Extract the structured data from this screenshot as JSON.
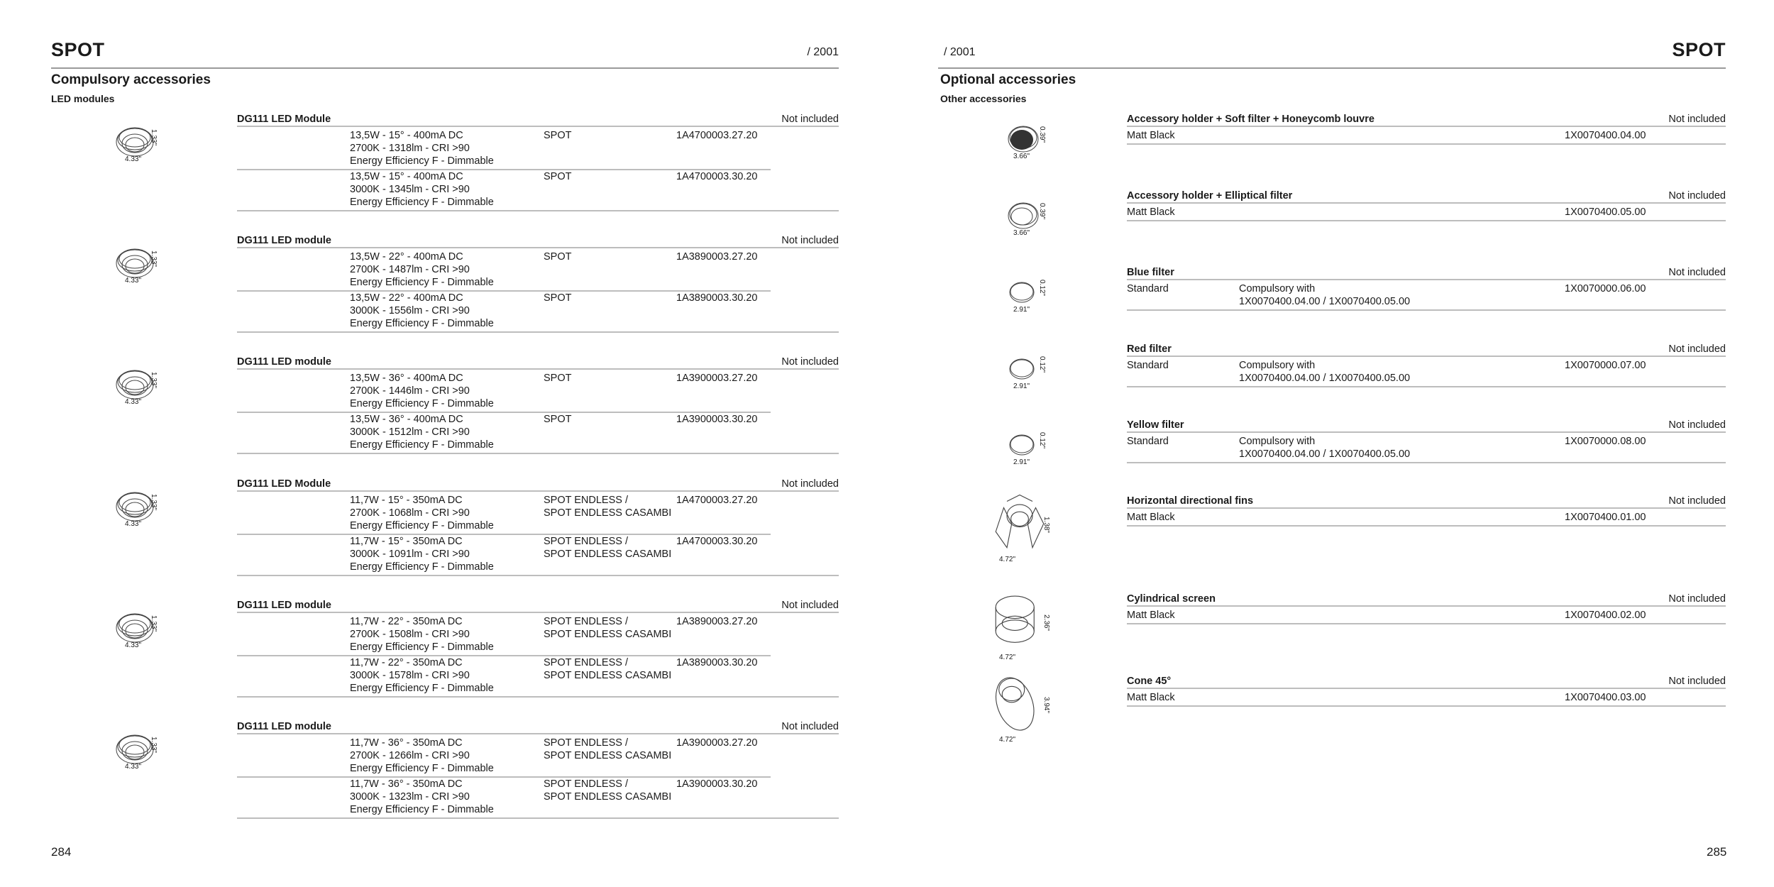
{
  "left_page": {
    "title": "SPOT",
    "series": "/ 2001",
    "section": "Compulsory accessories",
    "subsection": "LED modules",
    "page_number": "284",
    "groups": [
      {
        "title": "DG111 LED Module",
        "status": "Not included",
        "dims": [
          "4.33\"",
          "1.33\""
        ],
        "rows": [
          {
            "desc": [
              "13,5W - 15° - 400mA DC",
              "2700K - 1318lm - CRI >90",
              "Energy Efficiency F - Dimmable"
            ],
            "product": [
              "SPOT"
            ],
            "code": "1A4700003.27.20"
          },
          {
            "desc": [
              "13,5W - 15° - 400mA DC",
              "3000K - 1345lm - CRI >90",
              "Energy Efficiency F - Dimmable"
            ],
            "product": [
              "SPOT"
            ],
            "code": "1A4700003.30.20"
          }
        ]
      },
      {
        "title": "DG111 LED module",
        "status": "Not included",
        "dims": [
          "4.33\"",
          "1.33\""
        ],
        "rows": [
          {
            "desc": [
              "13,5W - 22° - 400mA DC",
              "2700K - 1487lm - CRI >90",
              "Energy Efficiency F - Dimmable"
            ],
            "product": [
              "SPOT"
            ],
            "code": "1A3890003.27.20"
          },
          {
            "desc": [
              "13,5W - 22° - 400mA DC",
              "3000K - 1556lm - CRI >90",
              "Energy Efficiency F - Dimmable"
            ],
            "product": [
              "SPOT"
            ],
            "code": "1A3890003.30.20"
          }
        ]
      },
      {
        "title": "DG111 LED module",
        "status": "Not included",
        "dims": [
          "4.33\"",
          "1.33\""
        ],
        "rows": [
          {
            "desc": [
              "13,5W - 36° - 400mA DC",
              "2700K - 1446lm - CRI >90",
              "Energy Efficiency F - Dimmable"
            ],
            "product": [
              "SPOT"
            ],
            "code": "1A3900003.27.20"
          },
          {
            "desc": [
              "13,5W - 36° - 400mA DC",
              "3000K - 1512lm - CRI >90",
              "Energy Efficiency F - Dimmable"
            ],
            "product": [
              "SPOT"
            ],
            "code": "1A3900003.30.20"
          }
        ]
      },
      {
        "title": "DG111 LED Module",
        "status": "Not included",
        "dims": [
          "4.33\"",
          "1.33\""
        ],
        "rows": [
          {
            "desc": [
              "11,7W - 15° - 350mA DC",
              "2700K - 1068lm - CRI >90",
              "Energy Efficiency F - Dimmable"
            ],
            "product": [
              "SPOT ENDLESS /",
              "SPOT ENDLESS CASAMBI"
            ],
            "code": "1A4700003.27.20"
          },
          {
            "desc": [
              "11,7W - 15° - 350mA DC",
              "3000K - 1091lm - CRI >90",
              "Energy Efficiency F - Dimmable"
            ],
            "product": [
              "SPOT ENDLESS /",
              "SPOT ENDLESS CASAMBI"
            ],
            "code": "1A4700003.30.20"
          }
        ]
      },
      {
        "title": "DG111 LED module",
        "status": "Not included",
        "dims": [
          "4.33\"",
          "1.33\""
        ],
        "rows": [
          {
            "desc": [
              "11,7W - 22° - 350mA DC",
              "2700K - 1508lm - CRI >90",
              "Energy Efficiency F - Dimmable"
            ],
            "product": [
              "SPOT ENDLESS /",
              "SPOT ENDLESS CASAMBI"
            ],
            "code": "1A3890003.27.20"
          },
          {
            "desc": [
              "11,7W - 22° - 350mA DC",
              "3000K - 1578lm - CRI >90",
              "Energy Efficiency F - Dimmable"
            ],
            "product": [
              "SPOT ENDLESS /",
              "SPOT ENDLESS CASAMBI"
            ],
            "code": "1A3890003.30.20"
          }
        ]
      },
      {
        "title": "DG111 LED module",
        "status": "Not included",
        "dims": [
          "4.33\"",
          "1.33\""
        ],
        "rows": [
          {
            "desc": [
              "11,7W - 36° - 350mA DC",
              "2700K - 1266lm - CRI >90",
              "Energy Efficiency F - Dimmable"
            ],
            "product": [
              "SPOT ENDLESS /",
              "SPOT ENDLESS CASAMBI"
            ],
            "code": "1A3900003.27.20"
          },
          {
            "desc": [
              "11,7W - 36° - 350mA DC",
              "3000K - 1323lm - CRI >90",
              "Energy Efficiency F - Dimmable"
            ],
            "product": [
              "SPOT ENDLESS /",
              "SPOT ENDLESS CASAMBI"
            ],
            "code": "1A3900003.30.20"
          }
        ]
      }
    ]
  },
  "right_page": {
    "title": "SPOT",
    "series": "/ 2001",
    "section": "Optional accessories",
    "subsection": "Other accessories",
    "page_number": "285",
    "groups": [
      {
        "title": "Accessory holder + Soft filter + Honeycomb louvre",
        "status": "Not included",
        "icon": "honeycomb-louvre-icon",
        "dims": [
          "3.66\"",
          "0.39\""
        ],
        "rows": [
          {
            "finish": "Matt Black",
            "note": [],
            "code": "1X0070400.04.00"
          }
        ]
      },
      {
        "title": "Accessory holder + Elliptical filter",
        "status": "Not included",
        "icon": "elliptical-filter-icon",
        "dims": [
          "3.66\"",
          "0.39\""
        ],
        "rows": [
          {
            "finish": "Matt Black",
            "note": [],
            "code": "1X0070400.05.00"
          }
        ]
      },
      {
        "title": "Blue filter",
        "status": "Not included",
        "icon": "filter-disc-icon",
        "dims": [
          "2.91\"",
          "0.12\""
        ],
        "rows": [
          {
            "finish": "Standard",
            "note": [
              "Compulsory with",
              "1X0070400.04.00 / 1X0070400.05.00"
            ],
            "code": "1X0070000.06.00"
          }
        ]
      },
      {
        "title": "Red filter",
        "status": "Not included",
        "icon": "filter-disc-icon",
        "dims": [
          "2.91\"",
          "0.12\""
        ],
        "rows": [
          {
            "finish": "Standard",
            "note": [
              "Compulsory with",
              "1X0070400.04.00 / 1X0070400.05.00"
            ],
            "code": "1X0070000.07.00"
          }
        ]
      },
      {
        "title": "Yellow filter",
        "status": "Not included",
        "icon": "filter-disc-icon",
        "dims": [
          "2.91\"",
          "0.12\""
        ],
        "rows": [
          {
            "finish": "Standard",
            "note": [
              "Compulsory with",
              "1X0070400.04.00 / 1X0070400.05.00"
            ],
            "code": "1X0070000.08.00"
          }
        ]
      },
      {
        "title": "Horizontal directional fins",
        "status": "Not included",
        "icon": "directional-fins-icon",
        "dims": [
          "4.72\"",
          "1.38\""
        ],
        "rows": [
          {
            "finish": "Matt Black",
            "note": [],
            "code": "1X0070400.01.00"
          }
        ]
      },
      {
        "title": "Cylindrical screen",
        "status": "Not included",
        "icon": "cylindrical-screen-icon",
        "dims": [
          "4.72\"",
          "2.36\""
        ],
        "rows": [
          {
            "finish": "Matt Black",
            "note": [],
            "code": "1X0070400.02.00"
          }
        ]
      },
      {
        "title": "Cone 45°",
        "status": "Not included",
        "icon": "cone-icon",
        "dims": [
          "4.72\"",
          "3.94\""
        ],
        "rows": [
          {
            "finish": "Matt Black",
            "note": [],
            "code": "1X0070400.03.00"
          }
        ]
      }
    ]
  }
}
